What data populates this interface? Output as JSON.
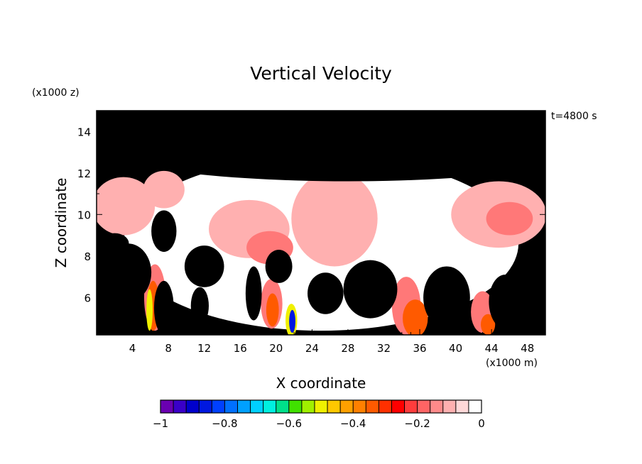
{
  "chart_data": {
    "type": "heatmap",
    "title": "Vertical Velocity",
    "xlabel": "X coordinate",
    "ylabel": "Z coordinate",
    "x_unit": "(x1000 m)",
    "y_unit": "(x1000 z)",
    "time_label": "t=4800 s",
    "xlim": [
      0,
      50
    ],
    "ylim": [
      4.2,
      15
    ],
    "x_ticks": [
      4,
      8,
      12,
      16,
      20,
      24,
      28,
      32,
      36,
      40,
      44,
      48
    ],
    "y_ticks": [
      6,
      8,
      10,
      12,
      14
    ],
    "grid": false,
    "background_color": "#000000",
    "colorbar": {
      "min": -1,
      "max": 0,
      "tick_values": [
        -1,
        -0.8,
        -0.6,
        -0.4,
        -0.2,
        0
      ],
      "tick_labels": [
        "−1",
        "−0.8",
        "−0.6",
        "−0.4",
        "−0.2",
        "0"
      ],
      "colors": [
        "#6a00b0",
        "#3a00c8",
        "#0000cc",
        "#0018e0",
        "#0040ff",
        "#0070ff",
        "#00a0ff",
        "#00d0ff",
        "#00f0e0",
        "#00e08a",
        "#40e000",
        "#a0f000",
        "#f0f000",
        "#ffc800",
        "#ffa000",
        "#ff8000",
        "#ff5a00",
        "#ff3000",
        "#ff0000",
        "#ff3c3c",
        "#ff6464",
        "#ff8a8a",
        "#ffb0b0",
        "#ffd8d8",
        "#ffffff"
      ]
    },
    "regions": [
      {
        "level": "zero",
        "cx": 25,
        "cy": 8.6,
        "rx": 22,
        "ry": 4.2
      },
      {
        "level": "weak_downdraft",
        "cx": 3,
        "cy": 10.4,
        "rx": 3.5,
        "ry": 1.4
      },
      {
        "level": "weak_downdraft",
        "cx": 7.5,
        "cy": 11.2,
        "rx": 2.3,
        "ry": 0.9
      },
      {
        "level": "weak_downdraft",
        "cx": 17,
        "cy": 9.3,
        "rx": 4.5,
        "ry": 1.4
      },
      {
        "level": "weak_downdraft",
        "cx": 26.5,
        "cy": 9.8,
        "rx": 4.8,
        "ry": 2.3
      },
      {
        "level": "weak_downdraft",
        "cx": 44.8,
        "cy": 10.0,
        "rx": 5.3,
        "ry": 1.6
      },
      {
        "level": "moderate_downdraft",
        "cx": 19.3,
        "cy": 8.4,
        "rx": 2.6,
        "ry": 0.8
      },
      {
        "level": "moderate_downdraft",
        "cx": 46,
        "cy": 9.8,
        "rx": 2.6,
        "ry": 0.8
      },
      {
        "level": "moderate_downdraft",
        "cx": 34.5,
        "cy": 5.6,
        "rx": 1.6,
        "ry": 1.4
      },
      {
        "level": "moderate_downdraft",
        "cx": 43,
        "cy": 5.3,
        "rx": 1.3,
        "ry": 1.0
      },
      {
        "level": "moderate_downdraft",
        "cx": 6.5,
        "cy": 6.0,
        "rx": 1.2,
        "ry": 1.6
      },
      {
        "level": "moderate_downdraft",
        "cx": 19.5,
        "cy": 5.7,
        "rx": 1.2,
        "ry": 1.2
      },
      {
        "level": "strong_downdraft",
        "cx": 35.5,
        "cy": 5.0,
        "rx": 1.4,
        "ry": 0.9
      },
      {
        "level": "strong_downdraft",
        "cx": 43.6,
        "cy": 4.7,
        "rx": 0.8,
        "ry": 0.5
      },
      {
        "level": "strong_downdraft",
        "cx": 6.3,
        "cy": 5.6,
        "rx": 0.7,
        "ry": 1.2
      },
      {
        "level": "strong_downdraft",
        "cx": 19.6,
        "cy": 5.4,
        "rx": 0.7,
        "ry": 0.8
      },
      {
        "level": "very_strong_downdraft",
        "cx": 5.9,
        "cy": 5.4,
        "rx": 0.35,
        "ry": 1.0
      },
      {
        "level": "very_strong_downdraft",
        "cx": 21.7,
        "cy": 4.9,
        "rx": 0.65,
        "ry": 0.8
      },
      {
        "level": "core_minimum",
        "cx": 21.8,
        "cy": 4.85,
        "rx": 0.35,
        "ry": 0.55
      }
    ],
    "updraft_regions": [
      {
        "cx": 7.5,
        "cy": 5.5,
        "rx": 1.1,
        "ry": 1.3
      },
      {
        "cx": 3.5,
        "cy": 7.2,
        "rx": 2.6,
        "ry": 1.4
      },
      {
        "cx": 12,
        "cy": 7.5,
        "rx": 2.2,
        "ry": 1.0
      },
      {
        "cx": 7.5,
        "cy": 9.2,
        "rx": 1.4,
        "ry": 1.0
      },
      {
        "cx": 17.5,
        "cy": 6.2,
        "rx": 0.9,
        "ry": 1.3
      },
      {
        "cx": 20.3,
        "cy": 7.5,
        "rx": 1.5,
        "ry": 0.8
      },
      {
        "cx": 25.5,
        "cy": 6.2,
        "rx": 2.0,
        "ry": 1.0
      },
      {
        "cx": 30.5,
        "cy": 6.4,
        "rx": 3.0,
        "ry": 1.4
      },
      {
        "cx": 39,
        "cy": 6.0,
        "rx": 2.6,
        "ry": 1.5
      },
      {
        "cx": 45.5,
        "cy": 5.8,
        "rx": 1.8,
        "ry": 1.3
      },
      {
        "cx": 11.5,
        "cy": 5.6,
        "rx": 1.0,
        "ry": 0.9
      },
      {
        "cx": 48.5,
        "cy": 6.5,
        "rx": 1.5,
        "ry": 1.0
      },
      {
        "cx": 28,
        "cy": 13.6,
        "rx": 30,
        "ry": 2.0
      },
      {
        "cx": 2,
        "cy": 8.6,
        "rx": 1.6,
        "ry": 0.5
      }
    ]
  }
}
